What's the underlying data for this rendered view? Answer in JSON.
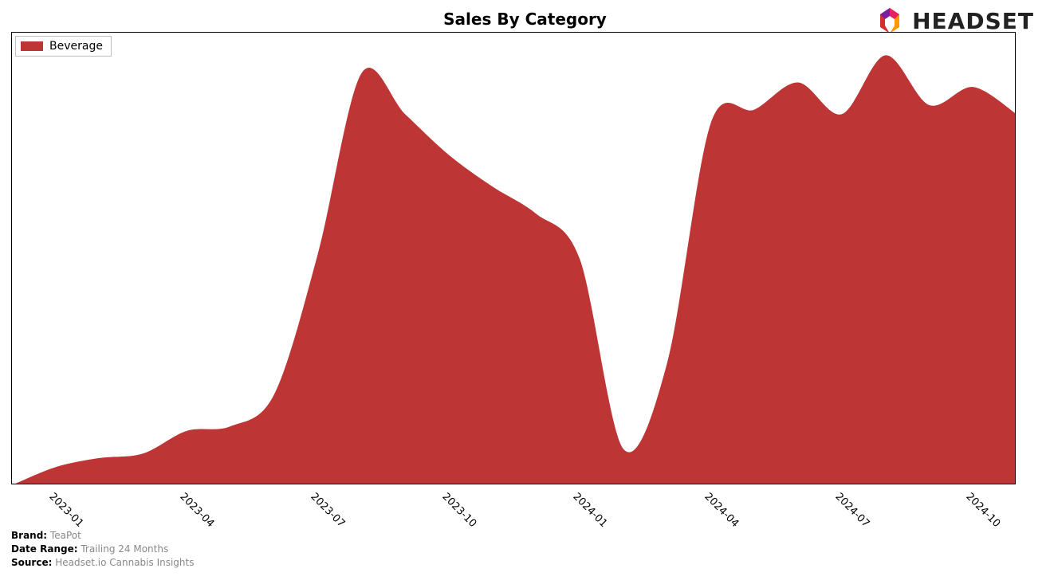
{
  "title": "Sales By Category",
  "logo_text": "HEADSET",
  "chart": {
    "type": "area",
    "series_name": "Beverage",
    "series_color": "#bd3535",
    "background_color": "#ffffff",
    "border_color": "#000000",
    "title_fontsize": 20,
    "tick_fontsize": 13,
    "legend_fontsize": 14,
    "ylim": [
      0,
      100
    ],
    "xlim": [
      0,
      23
    ],
    "x_tick_rotation_deg": 45,
    "x_tick_indices": [
      1,
      4,
      7,
      10,
      13,
      16,
      19,
      22
    ],
    "x_tick_labels": [
      "2023-01",
      "2023-04",
      "2023-07",
      "2023-10",
      "2024-01",
      "2024-04",
      "2024-07",
      "2024-10"
    ],
    "values": [
      0,
      4,
      6,
      7,
      12,
      13,
      20,
      51,
      91,
      82,
      73,
      66,
      60,
      50,
      8,
      27,
      80,
      83,
      89,
      82,
      95,
      84,
      88,
      82
    ]
  },
  "footer": {
    "brand_label": "Brand:",
    "brand_value": "TeaPot",
    "date_range_label": "Date Range:",
    "date_range_value": "Trailing 24 Months",
    "source_label": "Source:",
    "source_value": "Headset.io Cannabis Insights"
  }
}
